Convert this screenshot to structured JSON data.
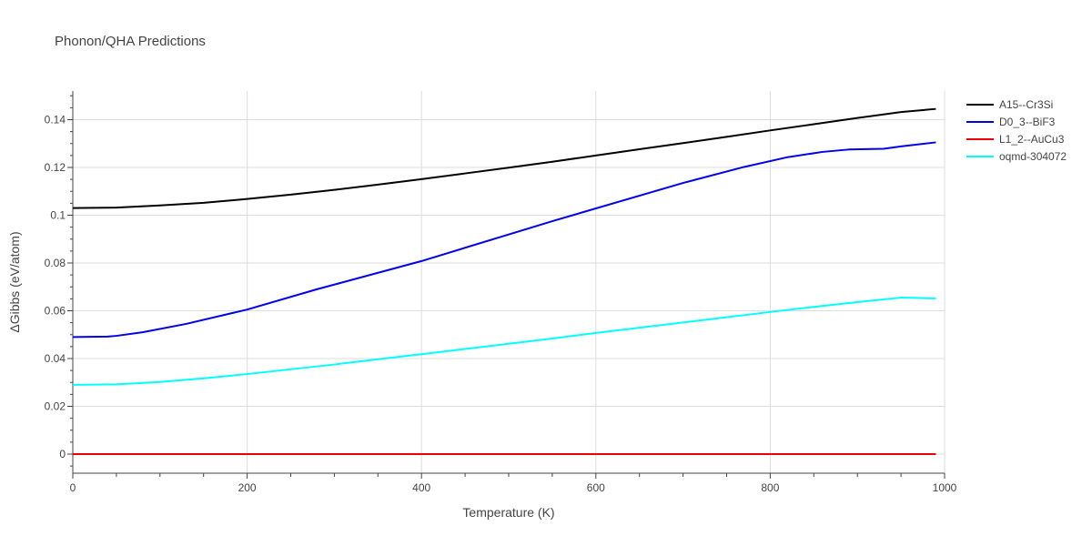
{
  "chart_data": {
    "type": "line",
    "title": "Phonon/QHA Predictions",
    "xlabel": "Temperature (K)",
    "ylabel": "ΔGibbs (eV/atom)",
    "xlim": [
      0,
      1000
    ],
    "ylim": [
      -0.008,
      0.152
    ],
    "x_ticks": [
      "0",
      "200",
      "400",
      "600",
      "800",
      "1000"
    ],
    "y_ticks": [
      "0",
      "0.02",
      "0.04",
      "0.06",
      "0.08",
      "0.1",
      "0.12",
      "0.14"
    ],
    "grid": true,
    "legend_position": "top-right",
    "series": [
      {
        "name": "A15--Cr3Si",
        "color": "#000000",
        "x": [
          0,
          50,
          100,
          150,
          200,
          250,
          300,
          350,
          400,
          450,
          500,
          550,
          600,
          650,
          700,
          750,
          800,
          850,
          900,
          950,
          990
        ],
        "y": [
          0.103,
          0.1032,
          0.1041,
          0.1052,
          0.1068,
          0.1086,
          0.1106,
          0.1128,
          0.1151,
          0.1175,
          0.1199,
          0.1224,
          0.125,
          0.1276,
          0.1302,
          0.1328,
          0.1355,
          0.1381,
          0.1407,
          0.1432,
          0.1445
        ]
      },
      {
        "name": "D0_3--BiF3",
        "color": "#0000ee",
        "x": [
          0,
          40,
          50,
          80,
          130,
          200,
          280,
          400,
          550,
          700,
          770,
          820,
          860,
          890,
          930,
          950,
          990
        ],
        "y": [
          0.049,
          0.0492,
          0.0495,
          0.051,
          0.0545,
          0.0605,
          0.069,
          0.0808,
          0.0975,
          0.1135,
          0.1202,
          0.1243,
          0.1265,
          0.1275,
          0.1278,
          0.1288,
          0.1305
        ]
      },
      {
        "name": "L1_2--AuCu3",
        "color": "#ee0000",
        "x": [
          0,
          990
        ],
        "y": [
          0,
          0
        ]
      },
      {
        "name": "oqmd-304072",
        "color": "#00ffff",
        "x": [
          0,
          50,
          100,
          150,
          200,
          250,
          300,
          350,
          400,
          450,
          500,
          550,
          600,
          650,
          700,
          750,
          800,
          850,
          900,
          950,
          990
        ],
        "y": [
          0.029,
          0.0292,
          0.0302,
          0.0317,
          0.0335,
          0.0355,
          0.0375,
          0.0397,
          0.0418,
          0.044,
          0.0462,
          0.0484,
          0.0507,
          0.0529,
          0.0551,
          0.0573,
          0.0595,
          0.0616,
          0.0636,
          0.0655,
          0.0652
        ]
      }
    ]
  }
}
